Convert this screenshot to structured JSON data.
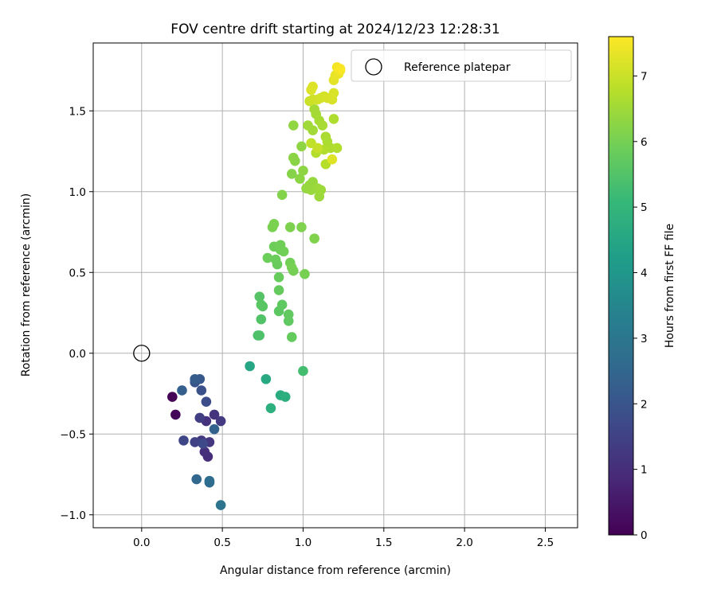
{
  "chart_data": {
    "type": "scatter",
    "title": "FOV centre drift starting at 2024/12/23 12:28:31",
    "xlabel": "Angular distance from reference (arcmin)",
    "ylabel": "Rotation from reference (arcmin)",
    "xlim": [
      -0.3,
      2.7
    ],
    "ylim": [
      -1.08,
      1.92
    ],
    "xticks": [
      0.0,
      0.5,
      1.0,
      1.5,
      2.0,
      2.5
    ],
    "xtick_labels": [
      "0.0",
      "0.5",
      "1.0",
      "1.5",
      "2.0",
      "2.5"
    ],
    "yticks": [
      -1.0,
      -0.5,
      0.0,
      0.5,
      1.0,
      1.5
    ],
    "ytick_labels": [
      "−1.0",
      "−0.5",
      "0.0",
      "0.5",
      "1.0",
      "1.5"
    ],
    "grid": true,
    "legend": {
      "placement": "top-right",
      "entries": [
        "Reference platepar"
      ]
    },
    "reference_point": {
      "x": 0.0,
      "y": 0.0,
      "marker": "open-circle",
      "color": "#000000"
    },
    "colormap": "viridis",
    "colorbar": {
      "label": "Hours from first FF file",
      "range": [
        0,
        7.6
      ],
      "ticks": [
        0,
        1,
        2,
        3,
        4,
        5,
        6,
        7
      ],
      "tick_labels": [
        "0",
        "1",
        "2",
        "3",
        "4",
        "5",
        "6",
        "7"
      ]
    },
    "series": [
      {
        "points": [
          {
            "x": 0.19,
            "y": -0.27,
            "c": 0.05
          },
          {
            "x": 0.21,
            "y": -0.38,
            "c": 0.1
          },
          {
            "x": 0.41,
            "y": -0.64,
            "c": 1.0
          },
          {
            "x": 0.39,
            "y": -0.61,
            "c": 1.05
          },
          {
            "x": 0.4,
            "y": -0.42,
            "c": 1.1
          },
          {
            "x": 0.45,
            "y": -0.38,
            "c": 1.15
          },
          {
            "x": 0.42,
            "y": -0.55,
            "c": 1.2
          },
          {
            "x": 0.37,
            "y": -0.54,
            "c": 1.25
          },
          {
            "x": 0.49,
            "y": -0.42,
            "c": 1.3
          },
          {
            "x": 0.36,
            "y": -0.4,
            "c": 1.4
          },
          {
            "x": 0.33,
            "y": -0.55,
            "c": 1.5
          },
          {
            "x": 0.26,
            "y": -0.54,
            "c": 1.6
          },
          {
            "x": 0.38,
            "y": -0.56,
            "c": 1.7
          },
          {
            "x": 0.4,
            "y": -0.3,
            "c": 1.8
          },
          {
            "x": 0.37,
            "y": -0.23,
            "c": 1.9
          },
          {
            "x": 0.33,
            "y": -0.18,
            "c": 2.0
          },
          {
            "x": 0.36,
            "y": -0.16,
            "c": 2.1
          },
          {
            "x": 0.33,
            "y": -0.16,
            "c": 2.2
          },
          {
            "x": 0.25,
            "y": -0.23,
            "c": 2.3
          },
          {
            "x": 0.45,
            "y": -0.47,
            "c": 2.4
          },
          {
            "x": 0.34,
            "y": -0.78,
            "c": 2.5
          },
          {
            "x": 0.42,
            "y": -0.8,
            "c": 2.6
          },
          {
            "x": 0.42,
            "y": -0.79,
            "c": 2.7
          },
          {
            "x": 0.49,
            "y": -0.94,
            "c": 2.9
          },
          {
            "x": 0.67,
            "y": -0.08,
            "c": 4.5
          },
          {
            "x": 0.77,
            "y": -0.16,
            "c": 4.6
          },
          {
            "x": 0.86,
            "y": -0.26,
            "c": 4.7
          },
          {
            "x": 0.89,
            "y": -0.27,
            "c": 4.75
          },
          {
            "x": 0.8,
            "y": -0.34,
            "c": 4.8
          },
          {
            "x": 1.0,
            "y": -0.11,
            "c": 5.3
          },
          {
            "x": 0.72,
            "y": 0.11,
            "c": 5.4
          },
          {
            "x": 0.73,
            "y": 0.11,
            "c": 5.45
          },
          {
            "x": 0.74,
            "y": 0.21,
            "c": 5.5
          },
          {
            "x": 0.73,
            "y": 0.35,
            "c": 5.55
          },
          {
            "x": 0.74,
            "y": 0.3,
            "c": 5.6
          },
          {
            "x": 0.75,
            "y": 0.29,
            "c": 5.62
          },
          {
            "x": 0.85,
            "y": 0.26,
            "c": 5.65
          },
          {
            "x": 0.87,
            "y": 0.3,
            "c": 5.68
          },
          {
            "x": 0.91,
            "y": 0.2,
            "c": 5.7
          },
          {
            "x": 0.91,
            "y": 0.24,
            "c": 5.72
          },
          {
            "x": 0.93,
            "y": 0.1,
            "c": 5.75
          },
          {
            "x": 0.85,
            "y": 0.39,
            "c": 5.78
          },
          {
            "x": 0.85,
            "y": 0.47,
            "c": 5.8
          },
          {
            "x": 0.84,
            "y": 0.55,
            "c": 5.82
          },
          {
            "x": 0.83,
            "y": 0.58,
            "c": 5.84
          },
          {
            "x": 0.78,
            "y": 0.59,
            "c": 5.86
          },
          {
            "x": 0.82,
            "y": 0.66,
            "c": 5.88
          },
          {
            "x": 0.86,
            "y": 0.64,
            "c": 5.9
          },
          {
            "x": 0.86,
            "y": 0.67,
            "c": 5.92
          },
          {
            "x": 0.88,
            "y": 0.63,
            "c": 5.94
          },
          {
            "x": 0.92,
            "y": 0.56,
            "c": 5.96
          },
          {
            "x": 0.94,
            "y": 0.51,
            "c": 5.98
          },
          {
            "x": 0.93,
            "y": 0.53,
            "c": 6.0
          },
          {
            "x": 1.01,
            "y": 0.49,
            "c": 6.02
          },
          {
            "x": 0.81,
            "y": 0.78,
            "c": 6.04
          },
          {
            "x": 0.82,
            "y": 0.8,
            "c": 6.06
          },
          {
            "x": 0.92,
            "y": 0.78,
            "c": 6.08
          },
          {
            "x": 0.99,
            "y": 0.78,
            "c": 6.1
          },
          {
            "x": 1.07,
            "y": 0.71,
            "c": 6.12
          },
          {
            "x": 0.87,
            "y": 0.98,
            "c": 6.15
          },
          {
            "x": 0.93,
            "y": 1.11,
            "c": 6.2
          },
          {
            "x": 0.95,
            "y": 1.19,
            "c": 6.22
          },
          {
            "x": 0.94,
            "y": 1.21,
            "c": 6.24
          },
          {
            "x": 0.98,
            "y": 1.08,
            "c": 6.26
          },
          {
            "x": 1.0,
            "y": 1.13,
            "c": 6.28
          },
          {
            "x": 0.99,
            "y": 1.28,
            "c": 6.3
          },
          {
            "x": 0.94,
            "y": 1.41,
            "c": 6.32
          },
          {
            "x": 1.02,
            "y": 1.02,
            "c": 6.34
          },
          {
            "x": 1.03,
            "y": 1.02,
            "c": 6.36
          },
          {
            "x": 1.04,
            "y": 1.04,
            "c": 6.38
          },
          {
            "x": 1.06,
            "y": 1.06,
            "c": 6.4
          },
          {
            "x": 1.05,
            "y": 1.01,
            "c": 6.42
          },
          {
            "x": 1.09,
            "y": 1.02,
            "c": 6.44
          },
          {
            "x": 1.1,
            "y": 0.97,
            "c": 6.46
          },
          {
            "x": 1.11,
            "y": 1.01,
            "c": 6.48
          },
          {
            "x": 1.03,
            "y": 1.41,
            "c": 6.5
          },
          {
            "x": 1.06,
            "y": 1.38,
            "c": 6.52
          },
          {
            "x": 1.08,
            "y": 1.48,
            "c": 6.54
          },
          {
            "x": 1.07,
            "y": 1.51,
            "c": 6.56
          },
          {
            "x": 1.1,
            "y": 1.44,
            "c": 6.58
          },
          {
            "x": 1.12,
            "y": 1.41,
            "c": 6.6
          },
          {
            "x": 1.14,
            "y": 1.34,
            "c": 6.62
          },
          {
            "x": 1.15,
            "y": 1.31,
            "c": 6.64
          },
          {
            "x": 1.17,
            "y": 1.27,
            "c": 6.66
          },
          {
            "x": 1.19,
            "y": 1.45,
            "c": 6.68
          },
          {
            "x": 1.21,
            "y": 1.27,
            "c": 6.7
          },
          {
            "x": 1.13,
            "y": 1.26,
            "c": 6.72
          },
          {
            "x": 1.08,
            "y": 1.24,
            "c": 6.74
          },
          {
            "x": 1.14,
            "y": 1.17,
            "c": 6.76
          },
          {
            "x": 1.05,
            "y": 1.3,
            "c": 6.9
          },
          {
            "x": 1.09,
            "y": 1.27,
            "c": 6.95
          },
          {
            "x": 1.04,
            "y": 1.56,
            "c": 7.0
          },
          {
            "x": 1.06,
            "y": 1.57,
            "c": 7.05
          },
          {
            "x": 1.09,
            "y": 1.57,
            "c": 7.08
          },
          {
            "x": 1.11,
            "y": 1.58,
            "c": 7.1
          },
          {
            "x": 1.13,
            "y": 1.59,
            "c": 7.12
          },
          {
            "x": 1.15,
            "y": 1.58,
            "c": 7.14
          },
          {
            "x": 1.18,
            "y": 1.57,
            "c": 7.16
          },
          {
            "x": 1.19,
            "y": 1.61,
            "c": 7.18
          },
          {
            "x": 1.05,
            "y": 1.63,
            "c": 7.2
          },
          {
            "x": 1.06,
            "y": 1.65,
            "c": 7.22
          },
          {
            "x": 1.18,
            "y": 1.2,
            "c": 7.25
          },
          {
            "x": 1.19,
            "y": 1.69,
            "c": 7.3
          },
          {
            "x": 1.2,
            "y": 1.72,
            "c": 7.35
          },
          {
            "x": 1.22,
            "y": 1.73,
            "c": 7.4
          },
          {
            "x": 1.23,
            "y": 1.75,
            "c": 7.45
          },
          {
            "x": 1.21,
            "y": 1.77,
            "c": 7.5
          },
          {
            "x": 1.23,
            "y": 1.76,
            "c": 7.55
          }
        ]
      }
    ]
  }
}
